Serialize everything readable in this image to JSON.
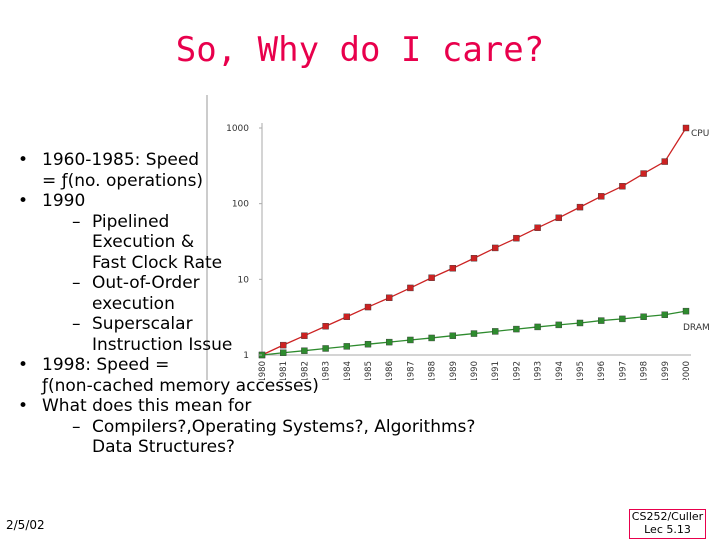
{
  "slide": {
    "title": "So, Why do I care?",
    "date": "2/5/02",
    "course_line1": "CS252/Culler",
    "course_line2": "Lec 5.13"
  },
  "bullets": [
    {
      "text_lines": [
        "1960-1985: Speed",
        "= ƒ(no. operations)"
      ],
      "sub": []
    },
    {
      "text_lines": [
        "1990"
      ],
      "sub": [
        {
          "text_lines": [
            "Pipelined",
            "Execution &",
            "Fast Clock Rate"
          ]
        },
        {
          "text_lines": [
            "Out-of-Order",
            "execution"
          ]
        },
        {
          "text_lines": [
            "Superscalar",
            "Instruction Issue"
          ]
        }
      ]
    },
    {
      "text_lines": [
        "1998: Speed =",
        "ƒ(non-cached memory accesses)"
      ],
      "sub": []
    },
    {
      "text_lines": [
        "What does this mean for"
      ],
      "sub": [
        {
          "text_lines": [
            "Compilers?,Operating Systems?, Algorithms?",
            "Data Structures?"
          ]
        }
      ]
    }
  ],
  "chart_data": {
    "type": "line",
    "title": "",
    "xlabel": "",
    "ylabel": "",
    "yscale": "log",
    "ylim": [
      1,
      1000
    ],
    "yticks": [
      "1000",
      "100",
      "10",
      "1"
    ],
    "grid": false,
    "x": [
      "1980",
      "1981",
      "1982",
      "1983",
      "1984",
      "1985",
      "1986",
      "1987",
      "1988",
      "1989",
      "1990",
      "1991",
      "1992",
      "1993",
      "1994",
      "1995",
      "1996",
      "1997",
      "1998",
      "1999",
      "2000"
    ],
    "series": [
      {
        "name": "CPU",
        "color": "#cc2222",
        "values": [
          1,
          1.35,
          1.8,
          2.4,
          3.2,
          4.3,
          5.7,
          7.7,
          10.5,
          14,
          19,
          26,
          35,
          48,
          65,
          90,
          125,
          170,
          250,
          360,
          1000
        ]
      },
      {
        "name": "DRAM",
        "color": "#2e8b2e",
        "values": [
          1,
          1.07,
          1.14,
          1.22,
          1.3,
          1.39,
          1.48,
          1.58,
          1.68,
          1.8,
          1.92,
          2.05,
          2.2,
          2.35,
          2.5,
          2.65,
          2.85,
          3.0,
          3.2,
          3.4,
          3.8
        ]
      }
    ]
  }
}
